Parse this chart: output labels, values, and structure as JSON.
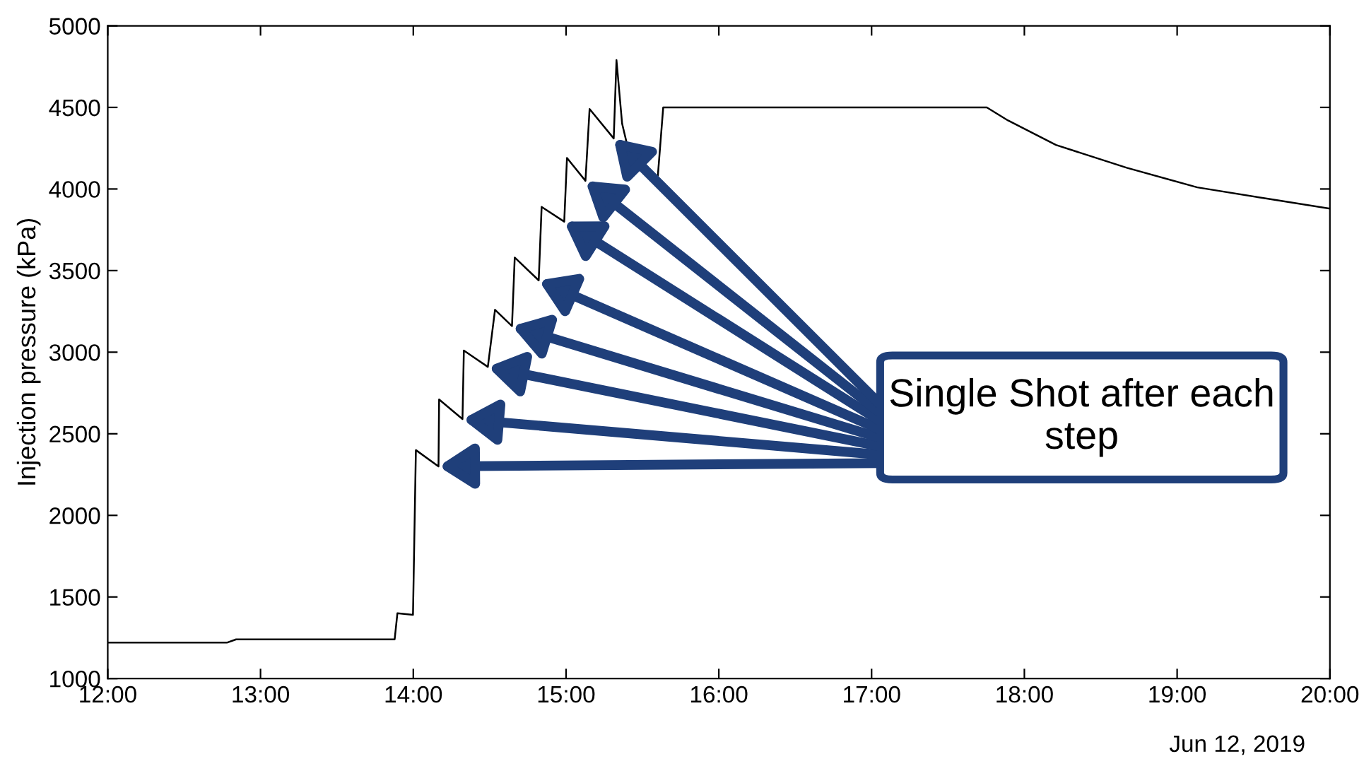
{
  "chart_data": {
    "type": "line",
    "ylabel": "Injection pressure (kPa)",
    "x": [
      12.0,
      12.78,
      12.84,
      13.878,
      13.896,
      13.998,
      14.017,
      14.165,
      14.169,
      14.322,
      14.331,
      14.488,
      14.535,
      14.646,
      14.664,
      14.821,
      14.84,
      14.988,
      15.006,
      15.127,
      15.154,
      15.312,
      15.33,
      15.367,
      15.395,
      15.599,
      15.636,
      17.754,
      17.893,
      18.207,
      18.67,
      19.132,
      19.595,
      20.0
    ],
    "series": [
      {
        "color": "#000000",
        "values": [
          1220,
          1220,
          1240,
          1240,
          1400,
          1390,
          2400,
          2300,
          2710,
          2590,
          3010,
          2910,
          3260,
          3160,
          3580,
          3440,
          3890,
          3800,
          4190,
          4050,
          4490,
          4310,
          4790,
          4400,
          4290,
          4060,
          4500,
          4500,
          4420,
          4270,
          4130,
          4010,
          3940,
          3880
        ]
      }
    ],
    "xlim": [
      12,
      20
    ],
    "xticks": [
      {
        "value": 12,
        "label": "12:00"
      },
      {
        "value": 13,
        "label": "13:00"
      },
      {
        "value": 14,
        "label": "14:00"
      },
      {
        "value": 15,
        "label": "15:00"
      },
      {
        "value": 16,
        "label": "16:00"
      },
      {
        "value": 17,
        "label": "17:00"
      },
      {
        "value": 18,
        "label": "18:00"
      },
      {
        "value": 19,
        "label": "19:00"
      },
      {
        "value": 20,
        "label": "20:00"
      }
    ],
    "ylim": [
      1000,
      5000
    ],
    "yticks": [
      1000,
      1500,
      2000,
      2500,
      3000,
      3500,
      4000,
      4500,
      5000
    ],
    "grid": false,
    "legend": false,
    "marker": "none",
    "line_style": "solid",
    "annotations": [
      "Single Shot after each step",
      "Jun 12, 2019"
    ]
  }
}
